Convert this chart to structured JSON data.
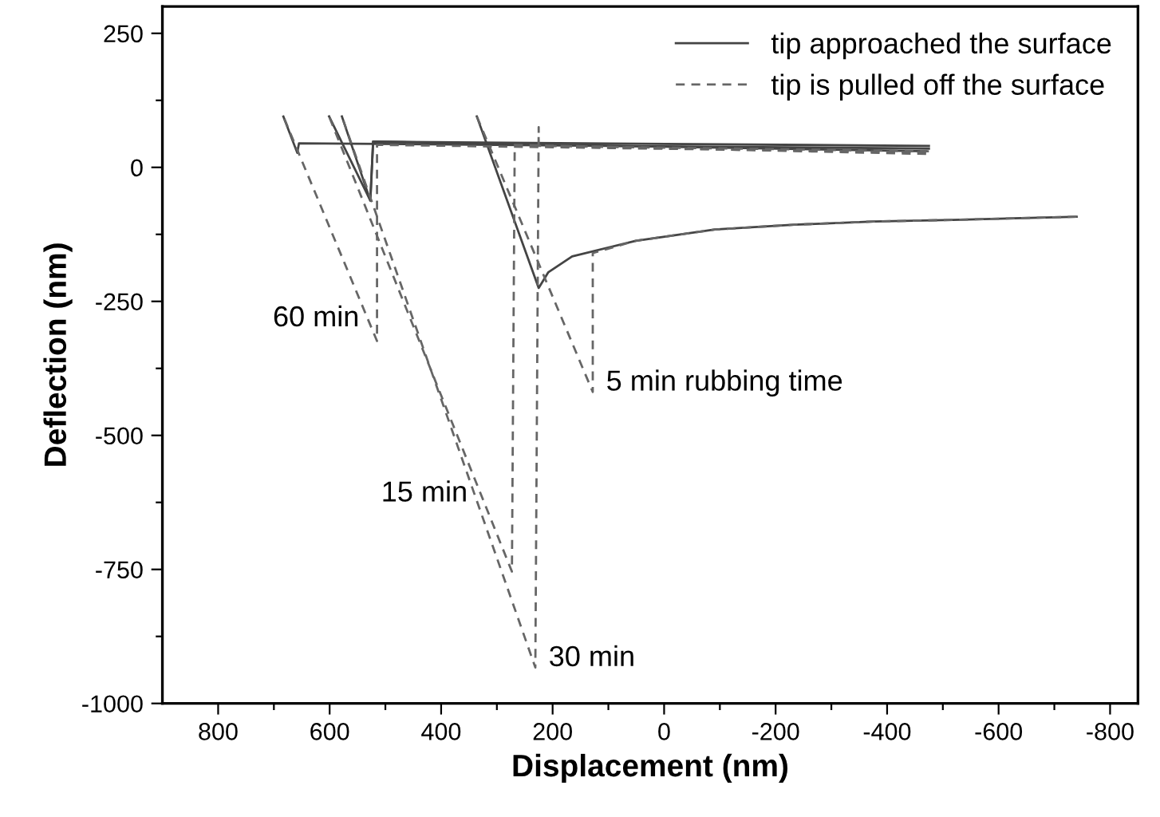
{
  "chart_data": {
    "type": "line",
    "xlabel": "Displacement (nm)",
    "ylabel": "Deflection (nm)",
    "xlim": [
      900,
      -850
    ],
    "ylim": [
      -1000,
      300
    ],
    "xticks": [
      800,
      {
        "value": 700,
        "label": null
      },
      600,
      {
        "value": 500,
        "label": null
      },
      400,
      {
        "value": 300,
        "label": null
      },
      200,
      {
        "value": 100,
        "label": null
      },
      0,
      {
        "value": -100,
        "label": null
      },
      -200,
      {
        "value": -300,
        "label": null
      },
      -400,
      {
        "value": -500,
        "label": null
      },
      -600,
      {
        "value": -700,
        "label": null
      },
      -800
    ],
    "yticks": [
      -1000,
      {
        "value": -875,
        "label": null
      },
      -750,
      {
        "value": -625,
        "label": null
      },
      -500,
      {
        "value": -375,
        "label": null
      },
      -250,
      {
        "value": -125,
        "label": null
      },
      0,
      {
        "value": 125,
        "label": null
      },
      250
    ],
    "grid": false,
    "legend": "top right",
    "marker": "none",
    "series": [
      {
        "name": "tip approached the surface",
        "color": "#444444",
        "line_style": "solid",
        "x": [
          683,
          658,
          655,
          -475
        ],
        "values": [
          95,
          27,
          45,
          35
        ]
      },
      {
        "color": "#444444",
        "line_style": "solid",
        "x": [
          601,
          527,
          522,
          -470
        ],
        "values": [
          95,
          -62,
          48,
          30
        ]
      },
      {
        "color": "#444444",
        "line_style": "solid",
        "x": [
          578,
          527,
          522,
          -475
        ],
        "values": [
          95,
          -62,
          48,
          40
        ]
      },
      {
        "color": "#444444",
        "line_style": "solid",
        "x": [
          336,
          225,
          208,
          165,
          51,
          -91,
          -233,
          -376,
          -518,
          -740
        ],
        "values": [
          95,
          -225,
          -196,
          -166,
          -137,
          -116,
          -107,
          -101,
          -98,
          -92
        ]
      },
      {
        "name": "tip is pulled off the surface",
        "color": "#666666",
        "line_style": "dashed",
        "x": [
          -470,
          515,
          515,
          683
        ],
        "values": [
          28,
          42,
          -324,
          95
        ]
      },
      {
        "color": "#666666",
        "line_style": "dashed",
        "x": [
          -470,
          268,
          273,
          601
        ],
        "values": [
          25,
          42,
          -754,
          95
        ]
      },
      {
        "color": "#666666",
        "line_style": "dashed",
        "x": [
          -475,
          225,
          225,
          231,
          578
        ],
        "values": [
          30,
          40,
          75,
          -933,
          95
        ]
      },
      {
        "color": "#666666",
        "line_style": "dashed",
        "x": [
          -740,
          -518,
          -376,
          -233,
          -91,
          51,
          128,
          128,
          336
        ],
        "values": [
          -92,
          -98,
          -101,
          -107,
          -116,
          -137,
          -160,
          -419,
          95
        ]
      }
    ],
    "annotations": [
      {
        "text": "60 min",
        "x": 515,
        "y": -324
      },
      {
        "text": "15 min",
        "x": 273,
        "y": -754
      },
      {
        "text": "30 min",
        "x": 231,
        "y": -933
      },
      {
        "text": "5 min rubbing time",
        "x": 128,
        "y": -419
      }
    ]
  }
}
